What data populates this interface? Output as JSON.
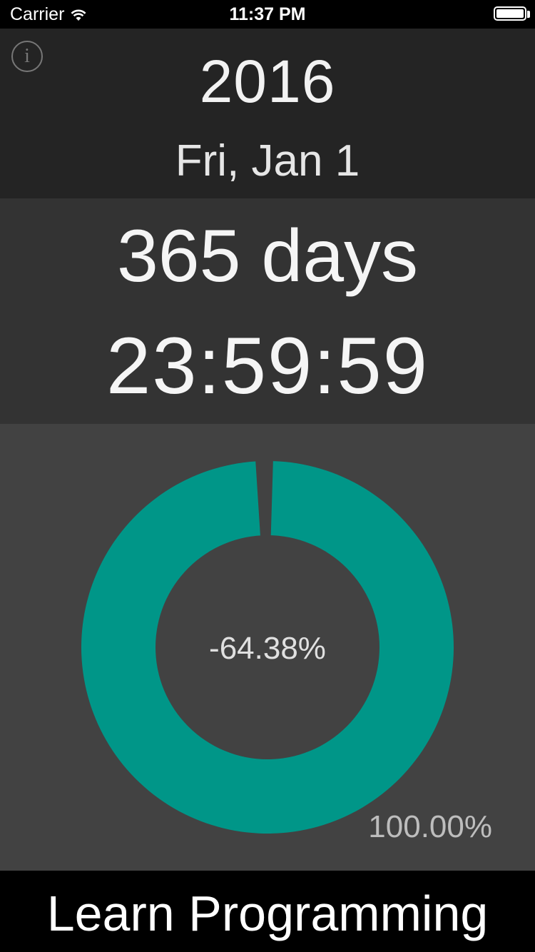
{
  "status": {
    "carrier": "Carrier",
    "time": "11:37 PM",
    "wifi_icon": "wifi-icon",
    "battery_icon": "battery-icon"
  },
  "header": {
    "info_icon": "info-icon",
    "info_glyph": "i",
    "year": "2016",
    "date": "Fri, Jan 1"
  },
  "countdown": {
    "days": "365 days",
    "clock": "23:59:59"
  },
  "progress": {
    "center_label": "-64.38%",
    "total_label": "100.00%",
    "fill_fraction": 0.985,
    "colors": {
      "ring": "#009688",
      "hole": "#424242"
    }
  },
  "footer": {
    "goal": "Learn Programming"
  }
}
